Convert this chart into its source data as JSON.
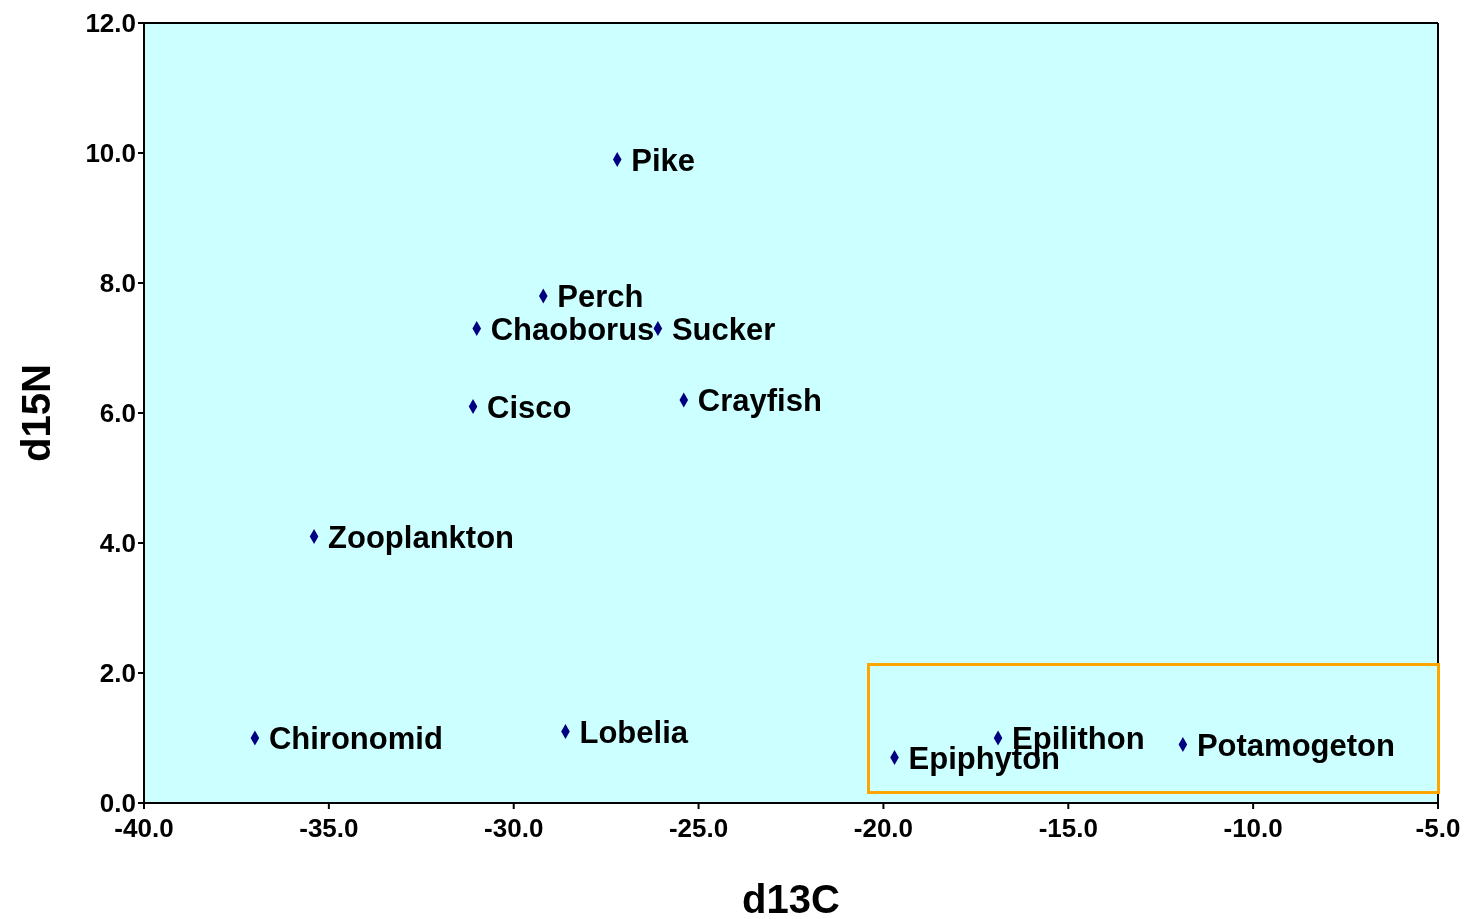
{
  "chart_data": {
    "type": "scatter",
    "xlabel": "d13C",
    "ylabel": "d15N",
    "x": [
      -27.2,
      -29.2,
      -31.0,
      -26.1,
      -31.1,
      -25.4,
      -35.4,
      -37.0,
      -28.6,
      -19.7,
      -16.9,
      -11.9
    ],
    "series": [
      {
        "color": "#000080",
        "values": [
          9.9,
          7.8,
          7.3,
          7.3,
          6.1,
          6.2,
          4.1,
          1.0,
          1.1,
          0.7,
          1.0,
          0.9
        ]
      }
    ],
    "xlim": [
      -40,
      -5
    ],
    "xticks": [
      {
        "value": -40,
        "label": "-40.0"
      },
      {
        "value": -35,
        "label": "-35.0"
      },
      {
        "value": -30,
        "label": "-30.0"
      },
      {
        "value": -25,
        "label": "-25.0"
      },
      {
        "value": -20,
        "label": "-20.0"
      },
      {
        "value": -15,
        "label": "-15.0"
      },
      {
        "value": -10,
        "label": "-10.0"
      },
      {
        "value": -5,
        "label": "-5.0"
      }
    ],
    "ylim": [
      0,
      12
    ],
    "yticks": [
      {
        "value": 0,
        "label": "0.0"
      },
      {
        "value": 2,
        "label": "2.0"
      },
      {
        "value": 4,
        "label": "4.0"
      },
      {
        "value": 6,
        "label": "6.0"
      },
      {
        "value": 8,
        "label": "8.0"
      },
      {
        "value": 10,
        "label": "10.0"
      },
      {
        "value": 12,
        "label": "12.0"
      }
    ],
    "marker": "diamond",
    "grid": false,
    "legend": false,
    "annotations": [
      {
        "text": "Pike",
        "x": -27.2,
        "y": 9.9
      },
      {
        "text": "Perch",
        "x": -29.2,
        "y": 7.8
      },
      {
        "text": "Chaoborus",
        "x": -31.0,
        "y": 7.3
      },
      {
        "text": "Sucker",
        "x": -26.1,
        "y": 7.3
      },
      {
        "text": "Cisco",
        "x": -31.1,
        "y": 6.1
      },
      {
        "text": "Crayfish",
        "x": -25.4,
        "y": 6.2
      },
      {
        "text": "Zooplankton",
        "x": -35.4,
        "y": 4.1
      },
      {
        "text": "Chironomid",
        "x": -37.0,
        "y": 1.0
      },
      {
        "text": "Lobelia",
        "x": -28.6,
        "y": 1.1
      },
      {
        "text": "Epiphyton",
        "x": -19.7,
        "y": 0.7
      },
      {
        "text": "Epilithon",
        "x": -16.9,
        "y": 1.0
      },
      {
        "text": "Potamogeton",
        "x": -11.9,
        "y": 0.9
      }
    ]
  }
}
